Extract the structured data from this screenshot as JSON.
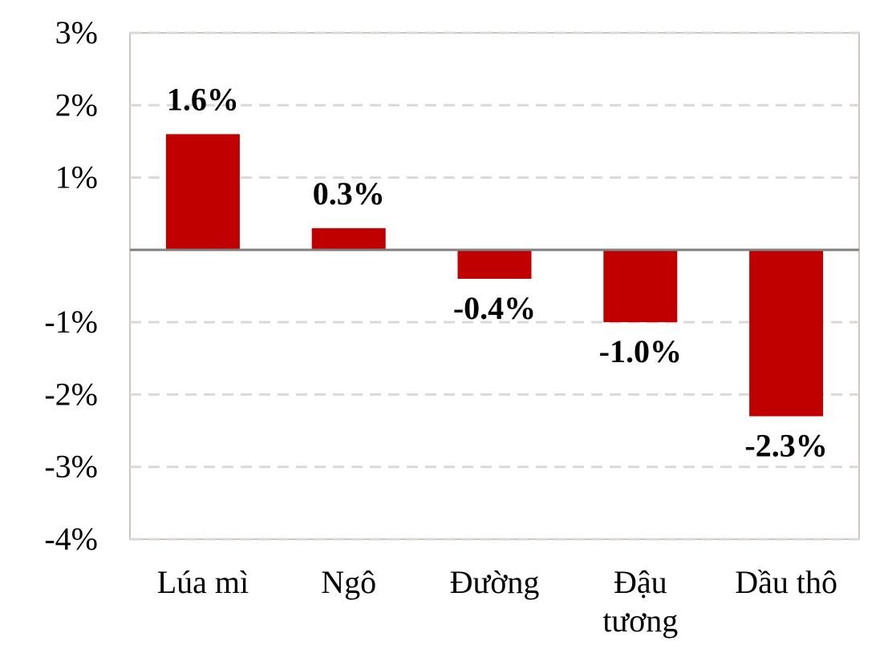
{
  "chart_data": {
    "type": "bar",
    "categories": [
      [
        "Lúa mì"
      ],
      [
        "Ngô"
      ],
      [
        "Đường"
      ],
      [
        "Đậu",
        "tương"
      ],
      [
        "Dầu thô"
      ]
    ],
    "values": [
      1.6,
      0.3,
      -0.4,
      -1.0,
      -2.3
    ],
    "data_labels": [
      "1.6%",
      "0.3%",
      "-0.4%",
      "-1.0%",
      "-2.3%"
    ],
    "y_ticks": [
      3,
      2,
      1,
      -1,
      -2,
      -3,
      -4
    ],
    "y_tick_labels": [
      "3%",
      "2%",
      "1%",
      "-1%",
      "-2%",
      "-3%",
      "-4%"
    ],
    "ylim": [
      -4,
      3
    ],
    "grid": "dashed horizontal",
    "colors": {
      "bar": "#c00000",
      "grid": "#d9d9d9",
      "zero_line": "#808080",
      "frame": "#bfb3a6"
    }
  }
}
